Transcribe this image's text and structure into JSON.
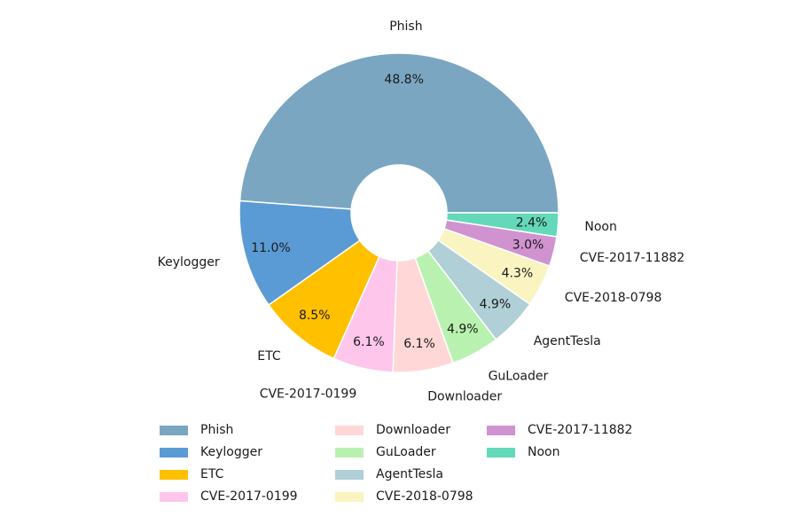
{
  "chart_data": {
    "type": "pie",
    "donut": true,
    "start_angle_deg": 0,
    "direction": "counterclockwise",
    "legend_position": "bottom",
    "legend_columns": 3,
    "slices": [
      {
        "label": "Phish",
        "value": 48.8,
        "pct_text": "48.8%",
        "color": "#7aa6c2"
      },
      {
        "label": "Keylogger",
        "value": 11.0,
        "pct_text": "11.0%",
        "color": "#5b9bd5"
      },
      {
        "label": "ETC",
        "value": 8.5,
        "pct_text": "8.5%",
        "color": "#ffc000"
      },
      {
        "label": "CVE-2017-0199",
        "value": 6.1,
        "pct_text": "6.1%",
        "color": "#ffc6ec"
      },
      {
        "label": "Downloader",
        "value": 6.1,
        "pct_text": "6.1%",
        "color": "#ffd7d7"
      },
      {
        "label": "GuLoader",
        "value": 4.9,
        "pct_text": "4.9%",
        "color": "#b9f2b0"
      },
      {
        "label": "AgentTesla",
        "value": 4.9,
        "pct_text": "4.9%",
        "color": "#b0cfd6"
      },
      {
        "label": "CVE-2018-0798",
        "value": 4.3,
        "pct_text": "4.3%",
        "color": "#faf4c0"
      },
      {
        "label": "CVE-2017-11882",
        "value": 3.0,
        "pct_text": "3.0%",
        "color": "#d093d0"
      },
      {
        "label": "Noon",
        "value": 2.4,
        "pct_text": "2.4%",
        "color": "#63d9b9"
      }
    ]
  }
}
